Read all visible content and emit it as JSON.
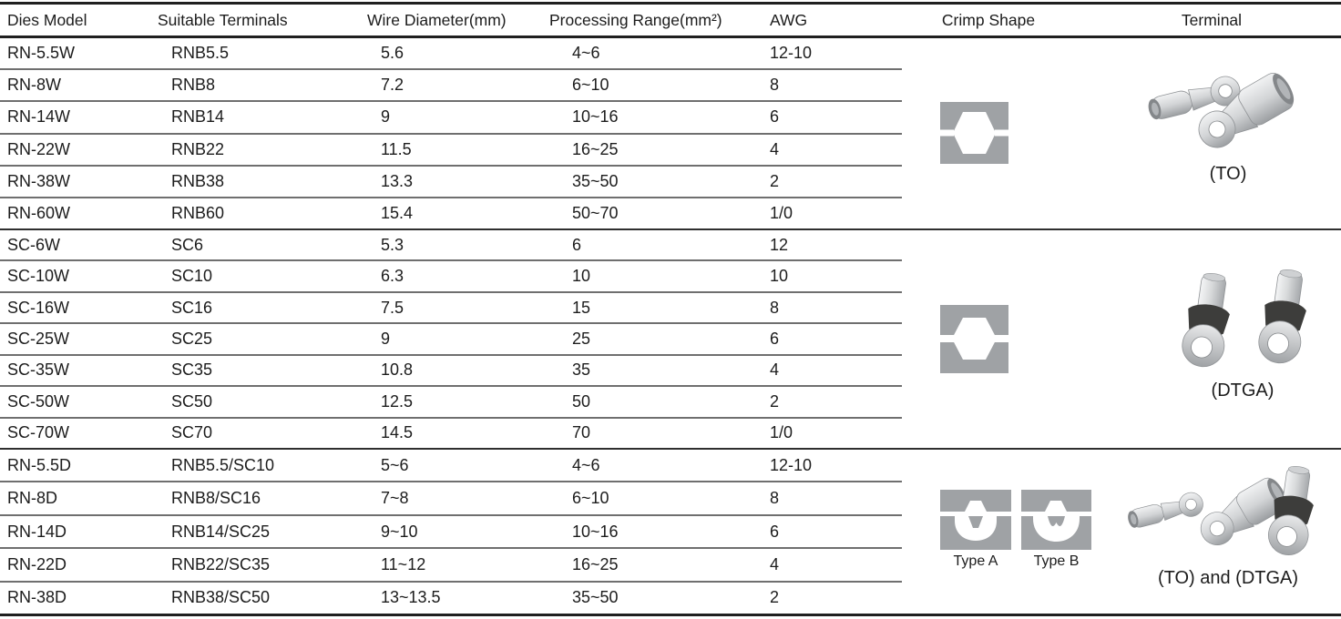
{
  "table": {
    "columns": [
      "Dies Model",
      "Suitable Terminals",
      "Wire Diameter(mm)",
      "Processing Range(mm²)",
      "AWG",
      "Crimp Shape",
      "Terminal"
    ],
    "groups": [
      {
        "crimp_shape": "hexagon-die",
        "terminal_label": "(TO)",
        "rows": [
          [
            "RN-5.5W",
            "RNB5.5",
            "5.6",
            "4~6",
            "12-10"
          ],
          [
            "RN-8W",
            "RNB8",
            "7.2",
            "6~10",
            "8"
          ],
          [
            "RN-14W",
            "RNB14",
            "9",
            "10~16",
            "6"
          ],
          [
            "RN-22W",
            "RNB22",
            "11.5",
            "16~25",
            "4"
          ],
          [
            "RN-38W",
            "RNB38",
            "13.3",
            "35~50",
            "2"
          ],
          [
            "RN-60W",
            "RNB60",
            "15.4",
            "50~70",
            "1/0"
          ]
        ]
      },
      {
        "crimp_shape": "hexagon-die-split",
        "terminal_label": "(DTGA)",
        "rows": [
          [
            "SC-6W",
            "SC6",
            "5.3",
            "6",
            "12"
          ],
          [
            "SC-10W",
            "SC10",
            "6.3",
            "10",
            "10"
          ],
          [
            "SC-16W",
            "SC16",
            "7.5",
            "15",
            "8"
          ],
          [
            "SC-25W",
            "SC25",
            "9",
            "25",
            "6"
          ],
          [
            "SC-35W",
            "SC35",
            "10.8",
            "35",
            "4"
          ],
          [
            "SC-50W",
            "SC50",
            "12.5",
            "50",
            "2"
          ],
          [
            "SC-70W",
            "SC70",
            "14.5",
            "70",
            "1/0"
          ]
        ]
      },
      {
        "crimp_shape": "indent-dies",
        "crimp_labels": [
          "Type A",
          "Type B"
        ],
        "terminal_label": "(TO) and (DTGA)",
        "rows": [
          [
            "RN-5.5D",
            "RNB5.5/SC10",
            "5~6",
            "4~6",
            "12-10"
          ],
          [
            "RN-8D",
            "RNB8/SC16",
            "7~8",
            "6~10",
            "8"
          ],
          [
            "RN-14D",
            "RNB14/SC25",
            "9~10",
            "10~16",
            "6"
          ],
          [
            "RN-22D",
            "RNB22/SC35",
            "11~12",
            "16~25",
            "4"
          ],
          [
            "RN-38D",
            "RNB38/SC50",
            "13~13.5",
            "35~50",
            "2"
          ]
        ]
      }
    ]
  },
  "colors": {
    "text": "#1c1c1c",
    "die_gray": "#9fa2a5",
    "row_line": "#6f6f6f",
    "group_line": "#2f2f2f",
    "border": "#1f1f1f"
  }
}
